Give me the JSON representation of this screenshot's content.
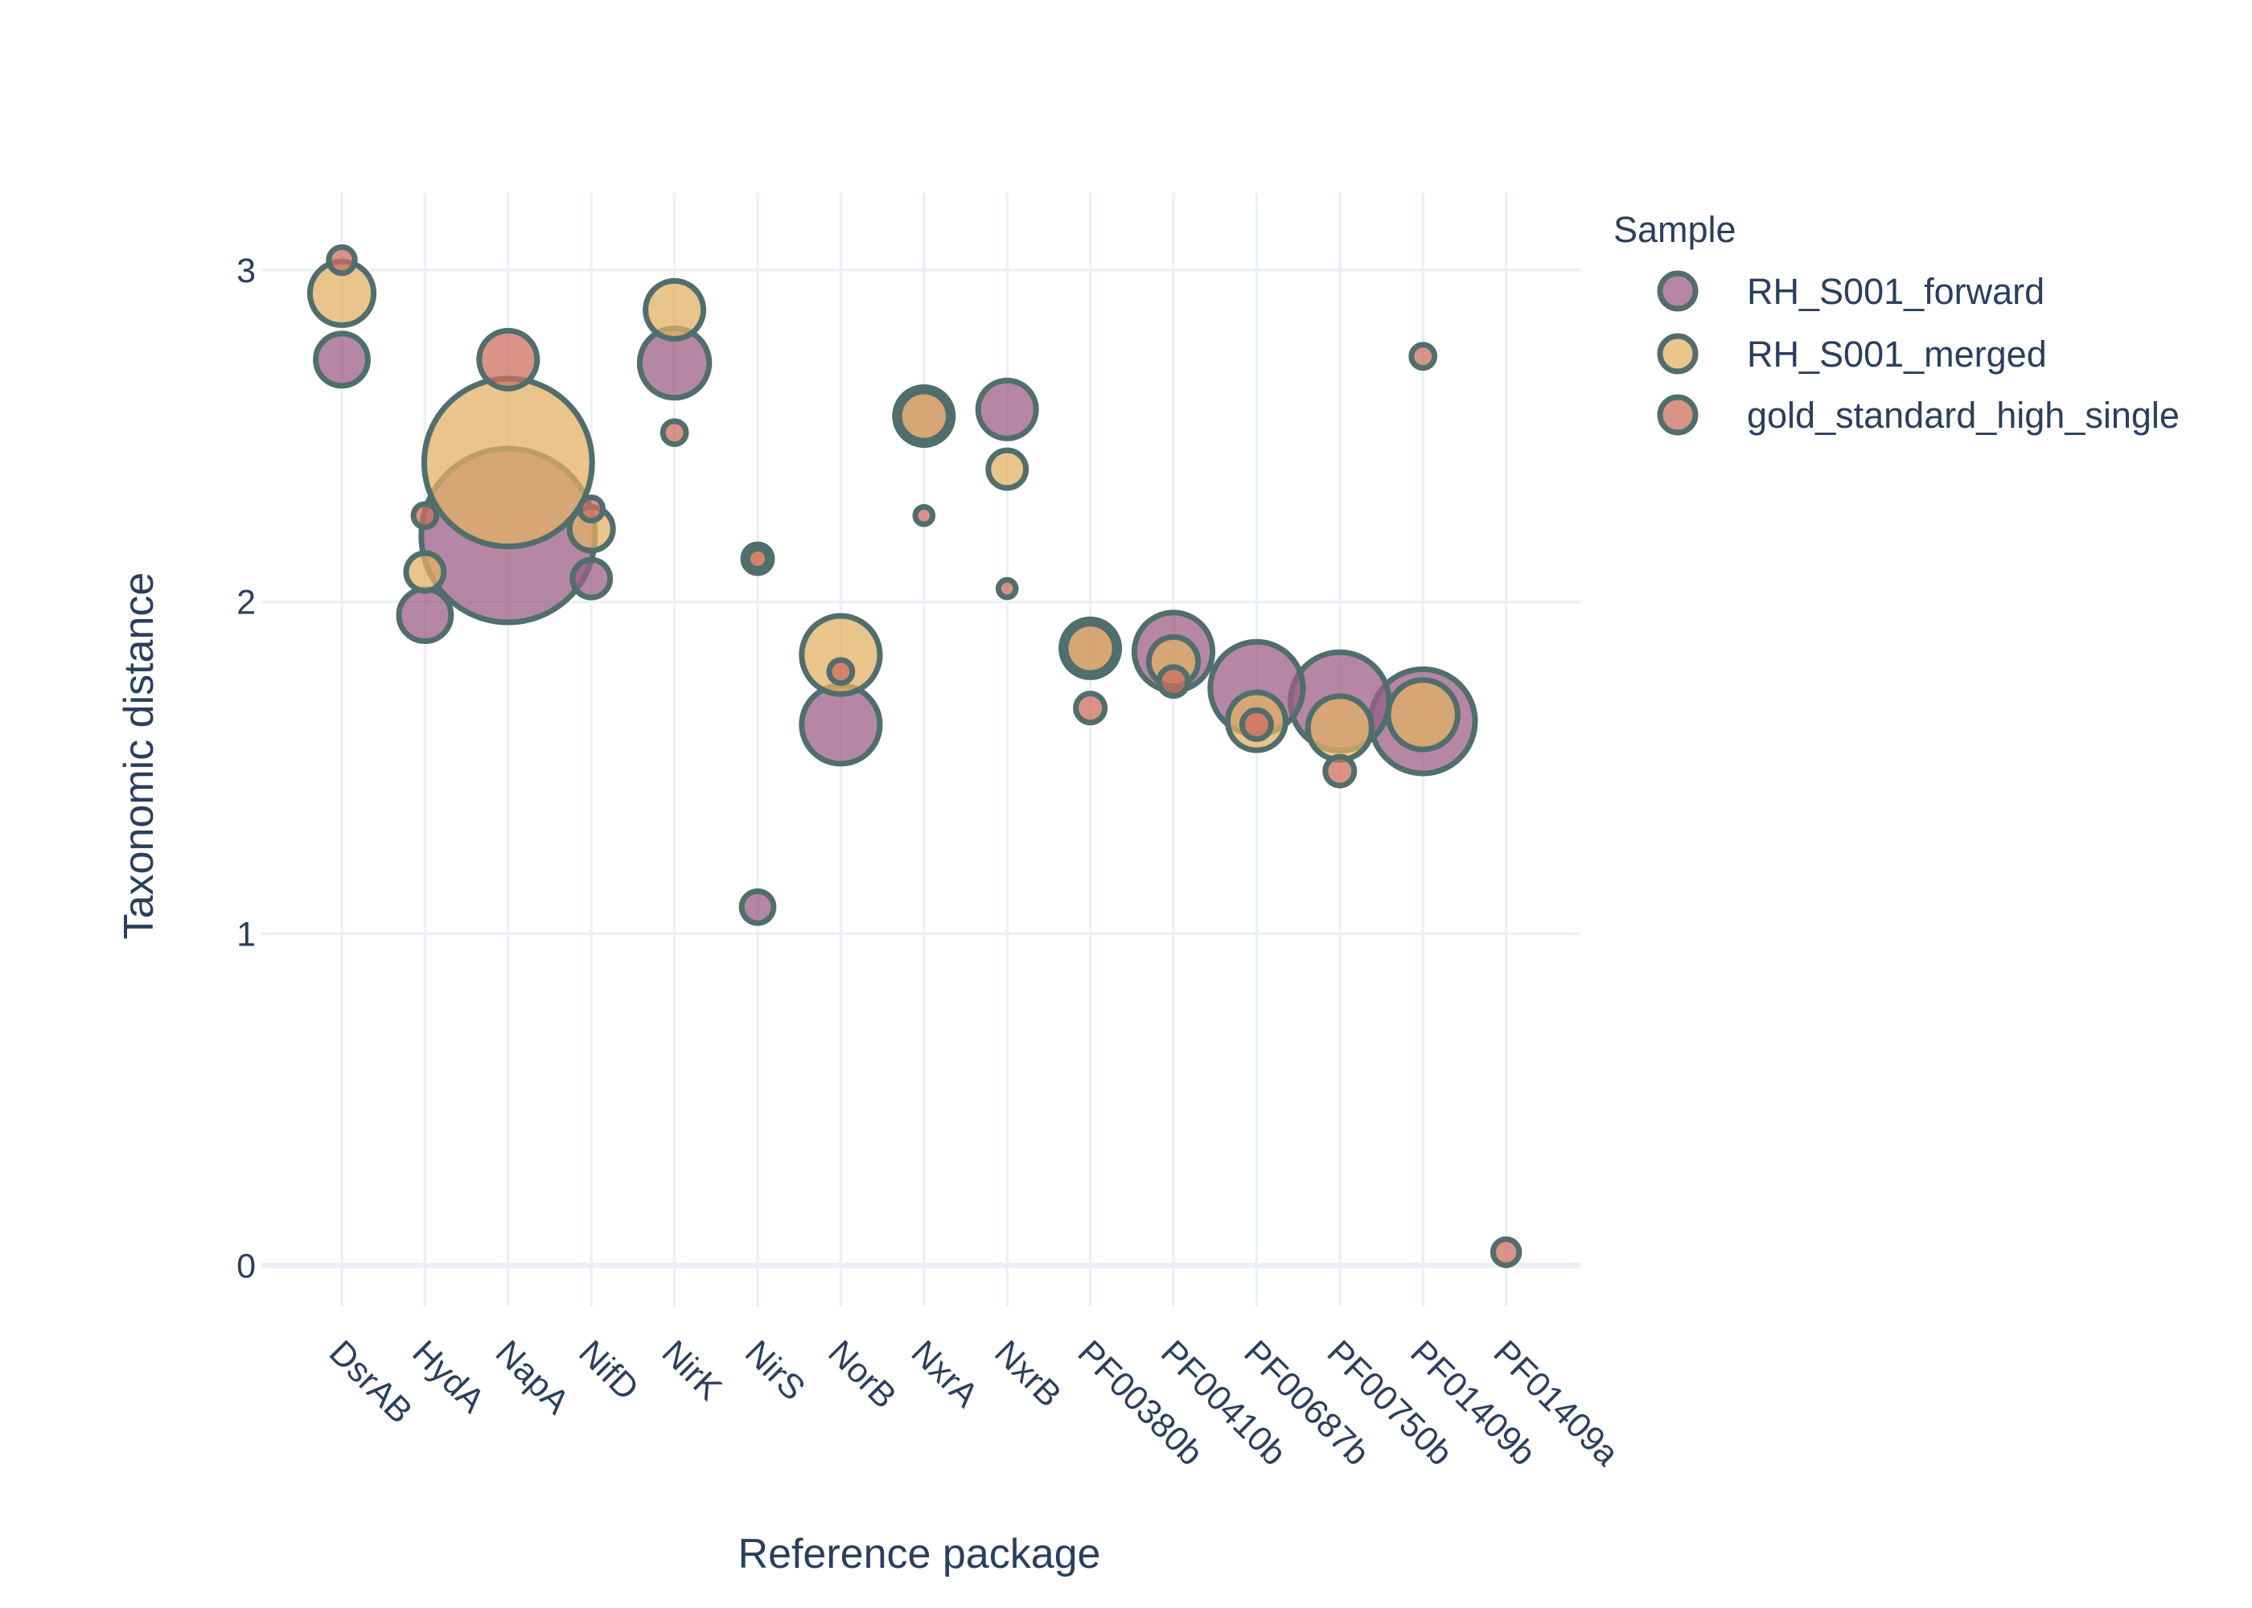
{
  "chart_data": {
    "type": "scatter",
    "xlabel": "Reference package",
    "ylabel": "Taxonomic distance",
    "categories": [
      "DsrAB",
      "HydA",
      "NapA",
      "NifD",
      "NirK",
      "NirS",
      "NorB",
      "NxrA",
      "NxrB",
      "PF00380b",
      "PF00410b",
      "PF00687b",
      "PF00750b",
      "PF01409b",
      "PF01409a"
    ],
    "ylim": [
      -0.15,
      3.25
    ],
    "yticks": [
      0,
      1,
      2,
      3
    ],
    "grid": true,
    "legend": {
      "title": "Sample",
      "placement": "top-right",
      "entries": [
        "RH_S001_forward",
        "RH_S001_merged",
        "gold_standard_high_single"
      ]
    },
    "marker_outline_color": "#506e6c",
    "series": [
      {
        "name": "RH_S001_forward",
        "color": "#9c5f87",
        "points": [
          {
            "x": "DsrAB",
            "y": 2.73,
            "size": 18
          },
          {
            "x": "HydA",
            "y": 1.96,
            "size": 18
          },
          {
            "x": "NapA",
            "y": 2.2,
            "size": 60
          },
          {
            "x": "NifD",
            "y": 2.07,
            "size": 13
          },
          {
            "x": "NirK",
            "y": 2.72,
            "size": 24
          },
          {
            "x": "NirS",
            "y": 1.08,
            "size": 11
          },
          {
            "x": "NorB",
            "y": 1.63,
            "size": 27
          },
          {
            "x": "NxrA",
            "y": 2.56,
            "size": 20
          },
          {
            "x": "NxrB",
            "y": 2.58,
            "size": 20
          },
          {
            "x": "PF00380b",
            "y": 1.86,
            "size": 20
          },
          {
            "x": "PF00410b",
            "y": 1.85,
            "size": 27
          },
          {
            "x": "PF00687b",
            "y": 1.74,
            "size": 32
          },
          {
            "x": "PF00750b",
            "y": 1.7,
            "size": 34
          },
          {
            "x": "PF01409b",
            "y": 1.64,
            "size": 36
          }
        ]
      },
      {
        "name": "RH_S001_merged",
        "color": "#e1b064",
        "points": [
          {
            "x": "DsrAB",
            "y": 2.93,
            "size": 22
          },
          {
            "x": "HydA",
            "y": 2.09,
            "size": 13
          },
          {
            "x": "NapA",
            "y": 2.42,
            "size": 58
          },
          {
            "x": "NifD",
            "y": 2.22,
            "size": 15
          },
          {
            "x": "NirK",
            "y": 2.88,
            "size": 20
          },
          {
            "x": "NirS",
            "y": 2.13,
            "size": 10
          },
          {
            "x": "NorB",
            "y": 1.84,
            "size": 27
          },
          {
            "x": "NxrA",
            "y": 2.56,
            "size": 17
          },
          {
            "x": "NxrB",
            "y": 2.4,
            "size": 13
          },
          {
            "x": "PF00380b",
            "y": 1.86,
            "size": 17
          },
          {
            "x": "PF00410b",
            "y": 1.82,
            "size": 17
          },
          {
            "x": "PF00687b",
            "y": 1.64,
            "size": 20
          },
          {
            "x": "PF00750b",
            "y": 1.62,
            "size": 22
          },
          {
            "x": "PF01409b",
            "y": 1.66,
            "size": 24
          }
        ]
      },
      {
        "name": "gold_standard_high_single",
        "color": "#cc6f5f",
        "points": [
          {
            "x": "DsrAB",
            "y": 3.03,
            "size": 9
          },
          {
            "x": "HydA",
            "y": 2.26,
            "size": 8
          },
          {
            "x": "NapA",
            "y": 2.73,
            "size": 20
          },
          {
            "x": "NifD",
            "y": 2.28,
            "size": 8
          },
          {
            "x": "NirK",
            "y": 2.51,
            "size": 8
          },
          {
            "x": "NirS",
            "y": 2.13,
            "size": 7
          },
          {
            "x": "NorB",
            "y": 1.79,
            "size": 8
          },
          {
            "x": "NxrA",
            "y": 2.26,
            "size": 6
          },
          {
            "x": "NxrB",
            "y": 2.04,
            "size": 6
          },
          {
            "x": "PF00380b",
            "y": 1.68,
            "size": 10
          },
          {
            "x": "PF00410b",
            "y": 1.76,
            "size": 10
          },
          {
            "x": "PF00687b",
            "y": 1.63,
            "size": 10
          },
          {
            "x": "PF00750b",
            "y": 1.49,
            "size": 10
          },
          {
            "x": "PF01409b",
            "y": 2.74,
            "size": 8
          },
          {
            "x": "PF01409a",
            "y": 0.04,
            "size": 9
          }
        ]
      }
    ]
  }
}
